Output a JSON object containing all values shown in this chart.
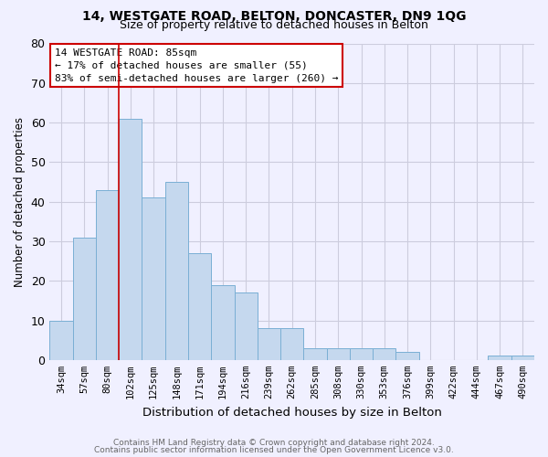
{
  "title1": "14, WESTGATE ROAD, BELTON, DONCASTER, DN9 1QG",
  "title2": "Size of property relative to detached houses in Belton",
  "xlabel": "Distribution of detached houses by size in Belton",
  "ylabel": "Number of detached properties",
  "footer1": "Contains HM Land Registry data © Crown copyright and database right 2024.",
  "footer2": "Contains public sector information licensed under the Open Government Licence v3.0.",
  "categories": [
    "34sqm",
    "57sqm",
    "80sqm",
    "102sqm",
    "125sqm",
    "148sqm",
    "171sqm",
    "194sqm",
    "216sqm",
    "239sqm",
    "262sqm",
    "285sqm",
    "308sqm",
    "330sqm",
    "353sqm",
    "376sqm",
    "399sqm",
    "422sqm",
    "444sqm",
    "467sqm",
    "490sqm"
  ],
  "values": [
    10,
    31,
    43,
    61,
    41,
    45,
    27,
    19,
    17,
    8,
    8,
    3,
    3,
    3,
    3,
    2,
    0,
    0,
    0,
    1,
    1
  ],
  "bar_color": "#c5d8ee",
  "bar_edgecolor": "#7aafd4",
  "background_color": "#f0f0ff",
  "grid_color": "#ccccdd",
  "vline_x": 2.5,
  "vline_color": "#cc0000",
  "annotation_line1": "14 WESTGATE ROAD: 85sqm",
  "annotation_line2": "← 17% of detached houses are smaller (55)",
  "annotation_line3": "83% of semi-detached houses are larger (260) →",
  "annotation_box_color": "#ffffff",
  "annotation_box_edgecolor": "#cc0000",
  "ylim": [
    0,
    80
  ],
  "yticks": [
    0,
    10,
    20,
    30,
    40,
    50,
    60,
    70,
    80
  ]
}
